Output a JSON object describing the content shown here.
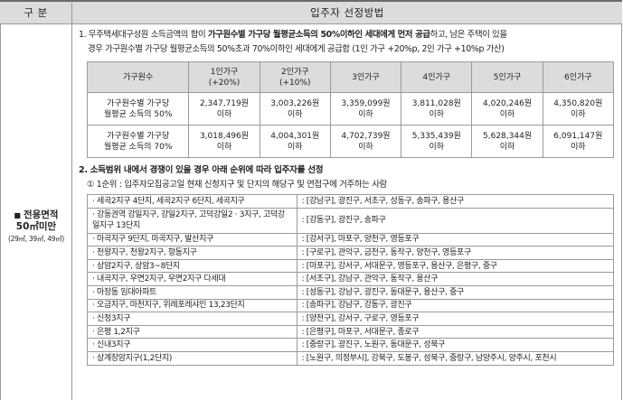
{
  "header": {
    "left": "구 분",
    "right": "입주자 선정방법"
  },
  "category": {
    "bullet": "■",
    "line1": "전용면적",
    "line2": "50㎡미만",
    "line3": "(29㎡, 39㎡, 49㎡)"
  },
  "section1": {
    "num": "1.",
    "part1": " 무주택세대구성원 소득금액의 합이 ",
    "bold": "가구원수별 가구당 월평균소득의 50%이하인 세대에게 먼저 공급",
    "part2": "하고, 남은 주택이 있을",
    "line2": "경우 가구원수별 가구당 월평균소득의 50%초과 70%이하인 세대에게 공급함 (1인 가구 +20%p, 2인 가구 +10%p 가산)"
  },
  "income_table": {
    "headers": [
      "가구원수",
      "1인가구\n(+20%)",
      "2인가구\n(+10%)",
      "3인가구",
      "4인가구",
      "5인가구",
      "6인가구"
    ],
    "rows": [
      {
        "label": "가구원수별 가구당\n월평균 소득의 50%",
        "values": [
          "2,347,719원\n이하",
          "3,003,226원\n이하",
          "3,359,099원\n이하",
          "3,811,028원\n이하",
          "4,020,246원\n이하",
          "4,350,820원\n이하"
        ]
      },
      {
        "label": "가구원수별 가구당\n월평균 소득의 70%",
        "values": [
          "3,018,496원\n이하",
          "4,004,301원\n이하",
          "4,702,739원\n이하",
          "5,335,439원\n이하",
          "5,628,344원\n이하",
          "6,091,147원\n이하"
        ]
      }
    ]
  },
  "section2": {
    "title": "2. 소득범위 내에서 경쟁이 있을 경우 아래 순위에 따라 입주자를 선정",
    "priority": "① 1순위 : 입주자모집공고일 현재 신청지구 및 단지의 해당구 및 연접구에 거주하는 사람"
  },
  "areas": [
    {
      "district": "· 세곡2지구 4단지, 세곡2지구 6단지, 세곡지구",
      "gu": ": [강남구], 광진구, 서초구, 성동구, 송파구, 용산구"
    },
    {
      "district": "· 강동권역 강일지구, 강일2지구, 고덕강일2 · 3지구, 고덕강일지구 13단지",
      "gu": ": [강동구], 광진구, 송파구"
    },
    {
      "district": "· 마곡지구 9단지, 마곡지구, 발산지구",
      "gu": ": [강서구], 마포구, 양천구, 영등포구"
    },
    {
      "district": "· 천왕지구, 천왕2지구, 항동지구",
      "gu": ": [구로구], 관악구, 금천구, 동작구, 양천구, 영등포구"
    },
    {
      "district": "· 상암2지구, 상암3~8단지",
      "gu": ": [마포구], 강서구, 서대문구, 영등포구, 용산구, 은평구, 중구"
    },
    {
      "district": "· 내곡지구, 우면2지구, 우면2지구 다세대",
      "gu": ": [서초구], 강남구, 관악구, 동작구, 용산구"
    },
    {
      "district": "· 마장동 임대아파트",
      "gu": ": [성동구], 강남구, 광진구, 동대문구, 용산구, 중구"
    },
    {
      "district": "· 오금지구, 마천지구, 위례포레샤인 13,23단지",
      "gu": ": [송파구], 강남구, 강동구, 광진구"
    },
    {
      "district": "· 신정3지구",
      "gu": ": [양천구], 강서구, 구로구, 영등포구"
    },
    {
      "district": "· 은평 1,2지구",
      "gu": ": [은평구], 마포구, 서대문구, 종로구"
    },
    {
      "district": "· 신내3지구",
      "gu": ": [중랑구], 광진구, 노원구, 동대문구, 성북구"
    },
    {
      "district": "· 상계장암지구(1,2단지)",
      "gu": ": [노원구, 의정부시], 강북구, 도봉구, 성북구, 중랑구, 남양주시, 양주시, 포천시"
    }
  ]
}
